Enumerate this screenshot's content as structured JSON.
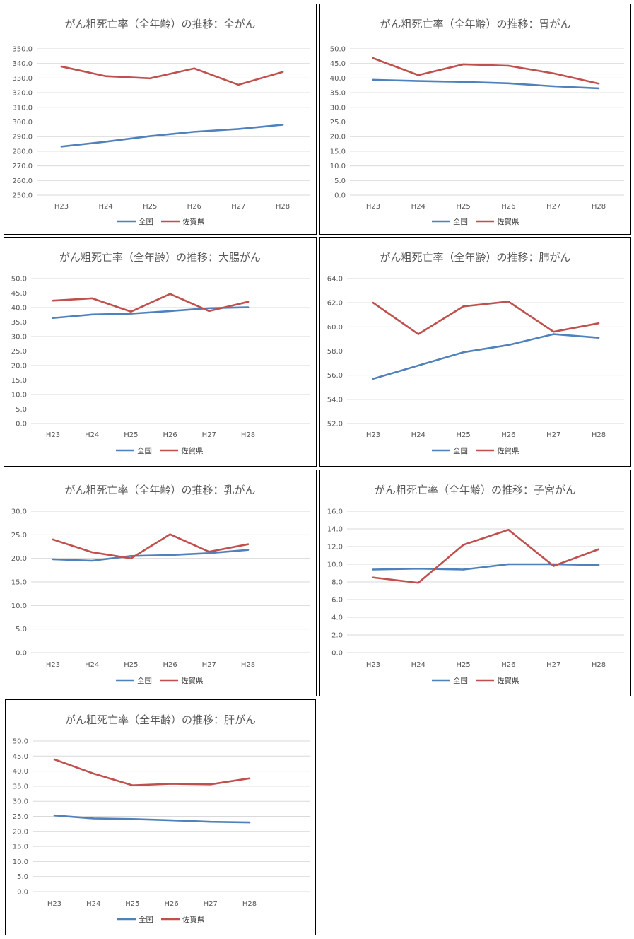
{
  "legend": {
    "national": "全国",
    "saga": "佐賀県"
  },
  "colors": {
    "national": "#4f81bd",
    "saga": "#c0504d",
    "grid": "#d9d9d9",
    "text": "#595959"
  },
  "chart_data": [
    {
      "type": "line",
      "title": "がん粗死亡率（全年齢）の推移：全がん",
      "categories": [
        "H23",
        "H24",
        "H25",
        "H26",
        "H27",
        "H28"
      ],
      "ylim": [
        250,
        350
      ],
      "ystep": 10,
      "decimals": 1,
      "grid": true,
      "legend_position": "bottom",
      "series": [
        {
          "name": "全国",
          "values": [
            283.2,
            286.5,
            290.3,
            293.3,
            295.2,
            298.1
          ]
        },
        {
          "name": "佐賀県",
          "values": [
            337.9,
            331.3,
            329.8,
            336.6,
            325.4,
            334.2
          ]
        }
      ]
    },
    {
      "type": "line",
      "title": "がん粗死亡率（全年齢）の推移：胃がん",
      "categories": [
        "H23",
        "H24",
        "H25",
        "H26",
        "H27",
        "H28"
      ],
      "ylim": [
        0,
        50
      ],
      "ystep": 5,
      "decimals": 1,
      "grid": true,
      "legend_position": "bottom",
      "series": [
        {
          "name": "全国",
          "values": [
            39.4,
            39.0,
            38.7,
            38.2,
            37.2,
            36.5
          ]
        },
        {
          "name": "佐賀県",
          "values": [
            46.8,
            41.0,
            44.7,
            44.2,
            41.6,
            38.1
          ]
        }
      ]
    },
    {
      "type": "line",
      "title": "がん粗死亡率（全年齢）の推移：大腸がん",
      "categories": [
        "H23",
        "H24",
        "H25",
        "H26",
        "H27",
        "H28"
      ],
      "ylim": [
        0,
        50
      ],
      "ystep": 5,
      "decimals": 1,
      "grid": true,
      "legend_position": "bottom",
      "series": [
        {
          "name": "全国",
          "values": [
            36.4,
            37.6,
            37.9,
            38.8,
            39.8,
            40.1
          ]
        },
        {
          "name": "佐賀県",
          "values": [
            42.4,
            43.2,
            38.6,
            44.7,
            38.8,
            42.0
          ]
        }
      ]
    },
    {
      "type": "line",
      "title": "がん粗死亡率（全年齢）の推移：肺がん",
      "categories": [
        "H23",
        "H24",
        "H25",
        "H26",
        "H27",
        "H28"
      ],
      "ylim": [
        52,
        64
      ],
      "ystep": 2,
      "decimals": 1,
      "grid": true,
      "legend_position": "bottom",
      "series": [
        {
          "name": "全国",
          "values": [
            55.7,
            56.8,
            57.9,
            58.5,
            59.4,
            59.1
          ]
        },
        {
          "name": "佐賀県",
          "values": [
            62.0,
            59.4,
            61.7,
            62.1,
            59.6,
            60.3
          ]
        }
      ]
    },
    {
      "type": "line",
      "title": "がん粗死亡率（全年齢）の推移：乳がん",
      "categories": [
        "H23",
        "H24",
        "H25",
        "H26",
        "H27",
        "H28"
      ],
      "ylim": [
        0,
        30
      ],
      "ystep": 5,
      "decimals": 1,
      "grid": true,
      "legend_position": "bottom",
      "series": [
        {
          "name": "全国",
          "values": [
            19.8,
            19.5,
            20.5,
            20.7,
            21.1,
            21.8
          ]
        },
        {
          "name": "佐賀県",
          "values": [
            24.0,
            21.3,
            20.0,
            25.1,
            21.4,
            23.0
          ]
        }
      ]
    },
    {
      "type": "line",
      "title": "がん粗死亡率（全年齢）の推移：子宮がん",
      "categories": [
        "H23",
        "H24",
        "H25",
        "H26",
        "H27",
        "H28"
      ],
      "ylim": [
        0,
        16
      ],
      "ystep": 2,
      "decimals": 1,
      "grid": true,
      "legend_position": "bottom",
      "series": [
        {
          "name": "全国",
          "values": [
            9.4,
            9.5,
            9.4,
            10.0,
            10.0,
            9.9
          ]
        },
        {
          "name": "佐賀県",
          "values": [
            8.5,
            7.9,
            12.2,
            13.9,
            9.8,
            11.7
          ]
        }
      ]
    },
    {
      "type": "line",
      "title": "がん粗死亡率（全年齢）の推移：肝がん",
      "categories": [
        "H23",
        "H24",
        "H25",
        "H26",
        "H27",
        "H28"
      ],
      "ylim": [
        0,
        50
      ],
      "ystep": 5,
      "decimals": 1,
      "grid": true,
      "legend_position": "bottom",
      "series": [
        {
          "name": "全国",
          "values": [
            25.3,
            24.3,
            24.1,
            23.7,
            23.2,
            23.0
          ]
        },
        {
          "name": "佐賀県",
          "values": [
            43.9,
            39.2,
            35.3,
            35.8,
            35.6,
            37.6
          ]
        }
      ]
    }
  ]
}
